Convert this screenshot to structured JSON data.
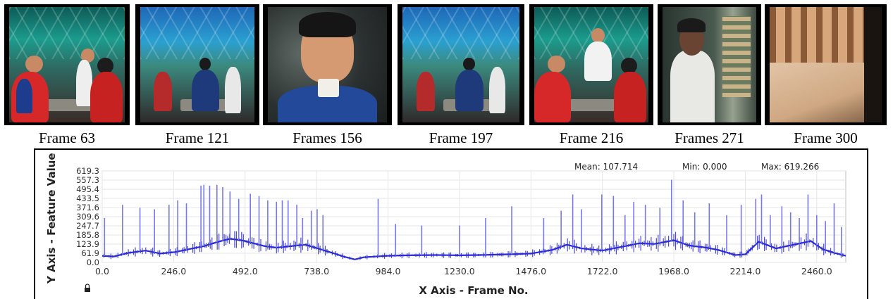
{
  "frames": [
    {
      "caption": "Frame 63",
      "scene": "cafe-chess"
    },
    {
      "caption": "Frame 121",
      "scene": "cafe-wide"
    },
    {
      "caption": "Frames 156",
      "scene": "closeup-man-with-cup"
    },
    {
      "caption": "Frame 197",
      "scene": "cafe-wide"
    },
    {
      "caption": "Frame 216",
      "scene": "cafe-chess"
    },
    {
      "caption": "Frames 271",
      "scene": "man-at-shop"
    },
    {
      "caption": "Frame 300",
      "scene": "wall-and-ground"
    }
  ],
  "chart_data": {
    "type": "line",
    "xlabel": "X Axis - Frame No.",
    "ylabel": "Y Axis - Feature Value",
    "stats": {
      "mean": "Mean: 107.714",
      "min": "Min: 0.000",
      "max": "Max: 619.266"
    },
    "xlim": [
      0,
      2560
    ],
    "ylim": [
      0,
      619.3
    ],
    "x_ticks": [
      "0.0",
      "246.0",
      "492.0",
      "738.0",
      "984.0",
      "1230.0",
      "1476.0",
      "1722.0",
      "1968.0",
      "2214.0",
      "2460.0"
    ],
    "x_tick_values": [
      0,
      246,
      492,
      738,
      984,
      1230,
      1476,
      1722,
      1968,
      2214,
      2460
    ],
    "y_ticks": [
      "619.3",
      "557.3",
      "495.4",
      "433.5",
      "371.6",
      "309.6",
      "247.7",
      "185.8",
      "123.9",
      "61.9",
      "0.0"
    ],
    "y_tick_values": [
      619.3,
      557.3,
      495.4,
      433.5,
      371.6,
      309.6,
      247.7,
      185.8,
      123.9,
      61.9,
      0.0
    ],
    "grid": true,
    "line_color": "#2b2bd6",
    "series": [
      {
        "baseline": [
          [
            0,
            45
          ],
          [
            40,
            40
          ],
          [
            90,
            65
          ],
          [
            150,
            80
          ],
          [
            200,
            60
          ],
          [
            250,
            70
          ],
          [
            300,
            90
          ],
          [
            350,
            110
          ],
          [
            400,
            140
          ],
          [
            440,
            160
          ],
          [
            480,
            150
          ],
          [
            520,
            130
          ],
          [
            560,
            110
          ],
          [
            600,
            100
          ],
          [
            650,
            110
          ],
          [
            700,
            120
          ],
          [
            750,
            90
          ],
          [
            800,
            60
          ],
          [
            830,
            40
          ],
          [
            870,
            20
          ],
          [
            900,
            35
          ],
          [
            980,
            45
          ],
          [
            1050,
            48
          ],
          [
            1150,
            50
          ],
          [
            1230,
            48
          ],
          [
            1300,
            50
          ],
          [
            1400,
            55
          ],
          [
            1476,
            60
          ],
          [
            1550,
            85
          ],
          [
            1600,
            120
          ],
          [
            1650,
            95
          ],
          [
            1722,
            80
          ],
          [
            1800,
            110
          ],
          [
            1850,
            130
          ],
          [
            1900,
            125
          ],
          [
            1968,
            150
          ],
          [
            2020,
            115
          ],
          [
            2080,
            100
          ],
          [
            2120,
            85
          ],
          [
            2180,
            50
          ],
          [
            2214,
            55
          ],
          [
            2260,
            140
          ],
          [
            2320,
            95
          ],
          [
            2380,
            120
          ],
          [
            2440,
            145
          ],
          [
            2480,
            90
          ],
          [
            2520,
            65
          ],
          [
            2560,
            45
          ]
        ],
        "spikes": [
          [
            8,
            300
          ],
          [
            70,
            390
          ],
          [
            130,
            370
          ],
          [
            180,
            360
          ],
          [
            230,
            390
          ],
          [
            260,
            420
          ],
          [
            290,
            400
          ],
          [
            340,
            520
          ],
          [
            350,
            525
          ],
          [
            370,
            520
          ],
          [
            395,
            525
          ],
          [
            415,
            510
          ],
          [
            440,
            480
          ],
          [
            470,
            430
          ],
          [
            510,
            465
          ],
          [
            540,
            450
          ],
          [
            570,
            420
          ],
          [
            600,
            410
          ],
          [
            620,
            420
          ],
          [
            640,
            420
          ],
          [
            670,
            390
          ],
          [
            690,
            300
          ],
          [
            720,
            350
          ],
          [
            740,
            360
          ],
          [
            760,
            320
          ],
          [
            950,
            430
          ],
          [
            1010,
            260
          ],
          [
            1100,
            250
          ],
          [
            1230,
            250
          ],
          [
            1320,
            300
          ],
          [
            1410,
            380
          ],
          [
            1520,
            300
          ],
          [
            1580,
            350
          ],
          [
            1620,
            460
          ],
          [
            1650,
            360
          ],
          [
            1720,
            460
          ],
          [
            1760,
            450
          ],
          [
            1800,
            320
          ],
          [
            1830,
            410
          ],
          [
            1870,
            390
          ],
          [
            1920,
            370
          ],
          [
            1960,
            560
          ],
          [
            2000,
            420
          ],
          [
            2040,
            340
          ],
          [
            2090,
            400
          ],
          [
            2150,
            320
          ],
          [
            2200,
            390
          ],
          [
            2250,
            430
          ],
          [
            2270,
            460
          ],
          [
            2300,
            320
          ],
          [
            2340,
            380
          ],
          [
            2370,
            340
          ],
          [
            2400,
            300
          ],
          [
            2430,
            460
          ],
          [
            2460,
            320
          ],
          [
            2490,
            280
          ],
          [
            2520,
            400
          ],
          [
            2545,
            240
          ]
        ]
      }
    ]
  }
}
